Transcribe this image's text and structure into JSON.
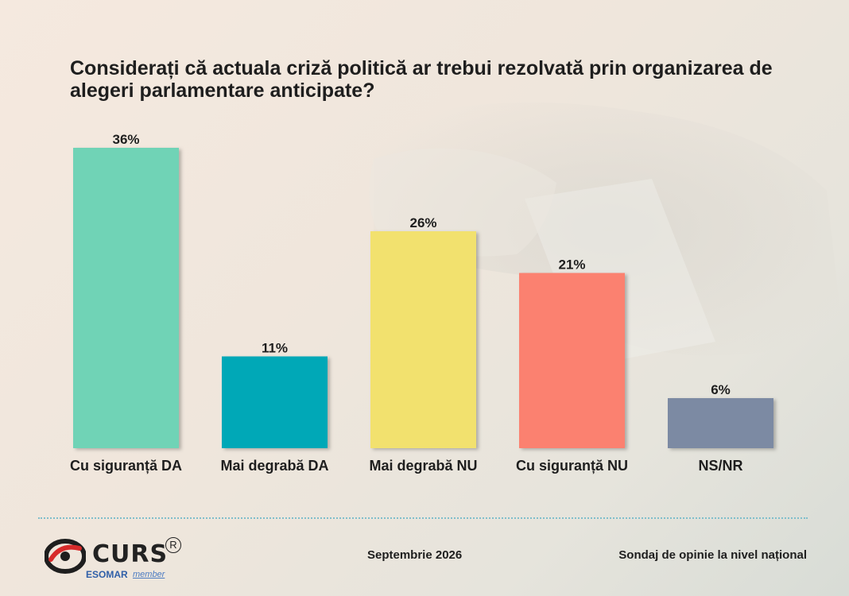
{
  "title": "Considerați că actuala criză politică ar trebui rezolvată prin organizarea de alegeri parlamentare anticipate?",
  "chart_data": {
    "type": "bar",
    "title": "Considerați că actuala criză politică ar trebui rezolvată prin organizarea de alegeri parlamentare anticipate?",
    "categories": [
      "Cu siguranță DA",
      "Mai degrabă DA",
      "Mai degrabă NU",
      "Cu siguranță NU",
      "NS/NR"
    ],
    "values": [
      36,
      11,
      26,
      21,
      6
    ],
    "data_labels": [
      "36%",
      "11%",
      "26%",
      "21%",
      "6%"
    ],
    "colors": [
      "#6fd3b6",
      "#00a8b7",
      "#f2e16e",
      "#fb8170",
      "#7b8aa3"
    ],
    "ylim": [
      0,
      36
    ],
    "grid": false,
    "legend": "none"
  },
  "footer": {
    "date": "Septembrie 2026",
    "source": "Sondaj de opinie la nivel național"
  },
  "logo": {
    "name": "CURS",
    "registered": "R",
    "esomar": "ESOMAR",
    "member": "member"
  }
}
